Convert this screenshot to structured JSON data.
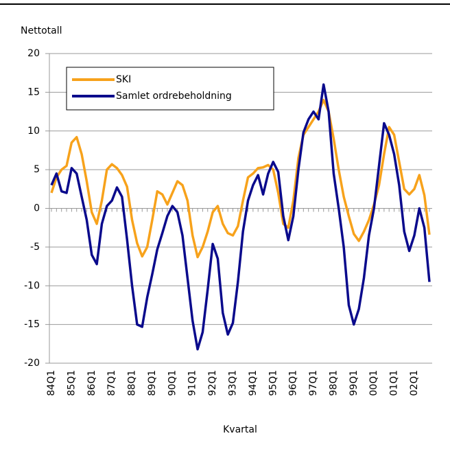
{
  "chart_data": {
    "type": "line",
    "y_label": "Nettotall",
    "x_label": "Kvartal",
    "categories": [
      "84Q1",
      null,
      null,
      null,
      "85Q1",
      null,
      null,
      null,
      "86Q1",
      null,
      null,
      null,
      "87Q1",
      null,
      null,
      null,
      "88Q1",
      null,
      null,
      null,
      "89Q1",
      null,
      null,
      null,
      "90Q1",
      null,
      null,
      null,
      "91Q1",
      null,
      null,
      null,
      "92Q1",
      null,
      null,
      null,
      "93Q1",
      null,
      null,
      null,
      "94Q1",
      null,
      null,
      null,
      "95Q1",
      null,
      null,
      null,
      "96Q1",
      null,
      null,
      null,
      "97Q1",
      null,
      null,
      null,
      "98Q1",
      null,
      null,
      null,
      "99Q1",
      null,
      null,
      null,
      "00Q1",
      null,
      null,
      null,
      "01Q1",
      null,
      null,
      null,
      "02Q1",
      null,
      null,
      null
    ],
    "series": [
      {
        "name": "SKI",
        "color": "#f7a21b",
        "values": [
          2,
          4,
          5,
          5.5,
          8.5,
          9.2,
          7,
          3.5,
          -0.5,
          -2,
          1,
          5,
          5.7,
          5.2,
          4.3,
          2.8,
          -1.5,
          -4.5,
          -6.2,
          -5,
          -1.5,
          2.2,
          1.8,
          0.5,
          2,
          3.5,
          3,
          1,
          -3.5,
          -6.3,
          -5,
          -3,
          -0.5,
          0.3,
          -2,
          -3.2,
          -3.5,
          -2.3,
          1,
          4,
          4.5,
          5.2,
          5.3,
          5.6,
          5,
          2,
          -2,
          -2.5,
          1,
          6.5,
          9.5,
          10.5,
          11.5,
          12.5,
          14,
          12.5,
          9,
          5,
          1.5,
          -1,
          -3.3,
          -4.2,
          -3,
          -1.5,
          0.5,
          3,
          7,
          10.5,
          9.5,
          6,
          2.5,
          1.8,
          2.5,
          4.3,
          1.7,
          -3.4
        ]
      },
      {
        "name": "Samlet ordrebeholdning",
        "color": "#0a0a8c",
        "values": [
          3,
          4.5,
          2.2,
          2,
          5.2,
          4.5,
          1.5,
          -1.5,
          -6,
          -7.2,
          -2,
          0.3,
          1,
          2.7,
          1.5,
          -4,
          -10,
          -15,
          -15.3,
          -11.5,
          -8.5,
          -5.3,
          -3.2,
          -1,
          0.3,
          -0.5,
          -3.5,
          -9,
          -14.5,
          -18.2,
          -16,
          -10.5,
          -4.6,
          -6.5,
          -13.5,
          -16.3,
          -14.8,
          -9.5,
          -3,
          1,
          3,
          4.3,
          1.8,
          4.5,
          6,
          4.7,
          -1,
          -4.1,
          -1,
          5,
          9.8,
          11.5,
          12.5,
          11.5,
          16,
          12.5,
          4.5,
          0,
          -5,
          -12.5,
          -15,
          -13,
          -9,
          -3.5,
          0,
          5.5,
          11,
          9.5,
          7,
          3,
          -3,
          -5.5,
          -3.5,
          0,
          -2.5,
          -9.5
        ]
      }
    ],
    "ylim": [
      -20,
      20
    ],
    "yticks": [
      -20,
      -15,
      -10,
      -5,
      0,
      5,
      10,
      15,
      20
    ],
    "grid": true,
    "legend": "upper left"
  }
}
